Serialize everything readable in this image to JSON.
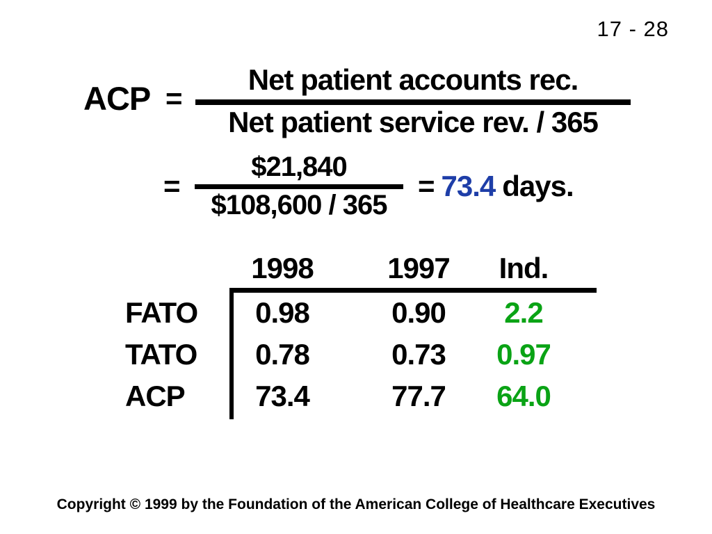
{
  "slide": {
    "page_number": "17 - 28",
    "footer": "Copyright © 1999 by the Foundation of the American College of Healthcare Executives",
    "background": "#ffffff"
  },
  "colors": {
    "text": "#000000",
    "result_blue": "#1e3ea8",
    "industry_green": "#0aa315"
  },
  "formula": {
    "lhs": "ACP",
    "equals": "=",
    "numerator": "Net patient accounts rec.",
    "denominator": "Net patient service rev. / 365"
  },
  "calculation": {
    "equals": "=",
    "numerator": "$21,840",
    "denominator": "$108,600 / 365",
    "equals_result": "=",
    "result": "73.4",
    "result_suffix": "days."
  },
  "table": {
    "headers": [
      "1998",
      "1997",
      "Ind."
    ],
    "rows": [
      {
        "label": "FATO",
        "values": [
          "0.98",
          "0.90",
          "2.2"
        ]
      },
      {
        "label": "TATO",
        "values": [
          "0.78",
          "0.73",
          "0.97"
        ]
      },
      {
        "label": "ACP",
        "values": [
          "73.4",
          "77.7",
          "64.0"
        ]
      }
    ]
  }
}
